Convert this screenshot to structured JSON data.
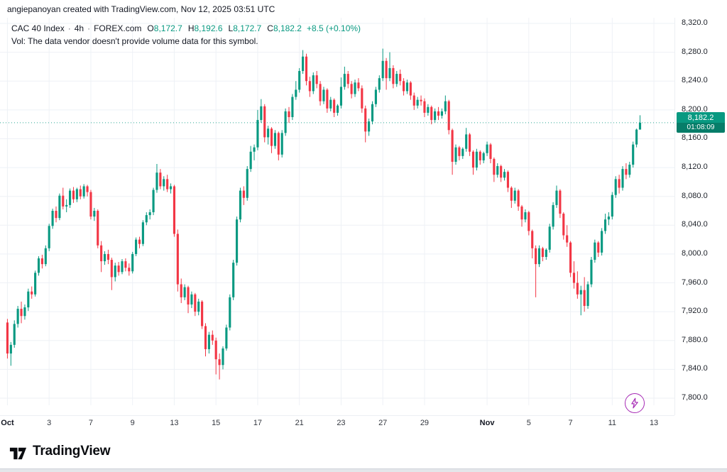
{
  "attribution": "angiepanoyan created with TradingView.com, Nov 12, 2025 03:51 UTC",
  "legend": {
    "symbol": "CAC 40 Index",
    "interval": "4h",
    "exchange": "FOREX.com",
    "separator": "·",
    "ohlc": {
      "o_label": "O",
      "o": "8,172.7",
      "h_label": "H",
      "h": "8,192.6",
      "l_label": "L",
      "l": "8,172.7",
      "c_label": "C",
      "c": "8,182.2",
      "change": "+8.5 (+0.10%)"
    },
    "vol_note": "Vol: The data vendor doesn't provide volume data for this symbol."
  },
  "price_scale": {
    "last_price_label": {
      "price": "8,182.2",
      "countdown": "01:08:09"
    }
  },
  "logo": {
    "text": "TradingView"
  },
  "colors": {
    "up": "#089981",
    "down": "#f23645",
    "grid": "#eef1f6",
    "axis_text": "#1b1f27",
    "accent_purple": "#a62bb5"
  },
  "chart_data": {
    "type": "candlestick",
    "title": "CAC 40 Index",
    "interval": "4h",
    "exchange": "FOREX.com",
    "ylim": [
      7800,
      8320
    ],
    "total_slots": 192,
    "last_price_value": 8182.2,
    "y_ticks": [
      {
        "label": "8,320.0",
        "value": 8320
      },
      {
        "label": "8,280.0",
        "value": 8280
      },
      {
        "label": "8,240.0",
        "value": 8240
      },
      {
        "label": "8,200.0",
        "value": 8200
      },
      {
        "label": "8,160.0",
        "value": 8160
      },
      {
        "label": "8,120.0",
        "value": 8120
      },
      {
        "label": "8,080.0",
        "value": 8080
      },
      {
        "label": "8,040.0",
        "value": 8040
      },
      {
        "label": "8,000.0",
        "value": 8000
      },
      {
        "label": "7,960.0",
        "value": 7960
      },
      {
        "label": "7,920.0",
        "value": 7920
      },
      {
        "label": "7,880.0",
        "value": 7880
      },
      {
        "label": "7,840.0",
        "value": 7840
      },
      {
        "label": "7,800.0",
        "value": 7800
      }
    ],
    "x_ticks": [
      {
        "text": "Oct",
        "slot": 0,
        "major": true
      },
      {
        "text": "3",
        "slot": 12,
        "major": false
      },
      {
        "text": "7",
        "slot": 24,
        "major": false
      },
      {
        "text": "9",
        "slot": 36,
        "major": false
      },
      {
        "text": "13",
        "slot": 48,
        "major": false
      },
      {
        "text": "15",
        "slot": 60,
        "major": false
      },
      {
        "text": "17",
        "slot": 72,
        "major": false
      },
      {
        "text": "21",
        "slot": 84,
        "major": false
      },
      {
        "text": "23",
        "slot": 96,
        "major": false
      },
      {
        "text": "27",
        "slot": 108,
        "major": false
      },
      {
        "text": "29",
        "slot": 120,
        "major": false
      },
      {
        "text": "Nov",
        "slot": 138,
        "major": true
      },
      {
        "text": "5",
        "slot": 150,
        "major": false
      },
      {
        "text": "7",
        "slot": 162,
        "major": false
      },
      {
        "text": "11",
        "slot": 174,
        "major": false
      },
      {
        "text": "13",
        "slot": 186,
        "major": false
      }
    ],
    "candles": [
      [
        7905,
        7910,
        7855,
        7862
      ],
      [
        7862,
        7878,
        7845,
        7874
      ],
      [
        7874,
        7908,
        7870,
        7903
      ],
      [
        7903,
        7928,
        7898,
        7924
      ],
      [
        7924,
        7934,
        7904,
        7914
      ],
      [
        7914,
        7930,
        7909,
        7926
      ],
      [
        7926,
        7952,
        7921,
        7948
      ],
      [
        7948,
        7955,
        7938,
        7944
      ],
      [
        7944,
        7977,
        7941,
        7974
      ],
      [
        7974,
        7997,
        7970,
        7994
      ],
      [
        7994,
        7999,
        7980,
        7986
      ],
      [
        7986,
        8012,
        7983,
        8008
      ],
      [
        8008,
        8042,
        8004,
        8039
      ],
      [
        8039,
        8063,
        8035,
        8060
      ],
      [
        8060,
        8066,
        8044,
        8050
      ],
      [
        8050,
        8084,
        8047,
        8081
      ],
      [
        8081,
        8092,
        8062,
        8066
      ],
      [
        8066,
        8076,
        8058,
        8068
      ],
      [
        8068,
        8091,
        8064,
        8088
      ],
      [
        8088,
        8093,
        8071,
        8076
      ],
      [
        8076,
        8092,
        8072,
        8090
      ],
      [
        8090,
        8095,
        8076,
        8080
      ],
      [
        8080,
        8097,
        8077,
        8094
      ],
      [
        8094,
        8096,
        8080,
        8086
      ],
      [
        8086,
        8089,
        8048,
        8052
      ],
      [
        8052,
        8064,
        8046,
        8060
      ],
      [
        8060,
        8062,
        8008,
        8012
      ],
      [
        8012,
        8018,
        7975,
        7990
      ],
      [
        7990,
        8004,
        7985,
        8000
      ],
      [
        8000,
        8006,
        7986,
        7992
      ],
      [
        7992,
        7995,
        7950,
        7968
      ],
      [
        7968,
        7988,
        7962,
        7984
      ],
      [
        7984,
        7989,
        7970,
        7975
      ],
      [
        7975,
        7993,
        7972,
        7990
      ],
      [
        7990,
        7994,
        7976,
        7981
      ],
      [
        7981,
        7987,
        7970,
        7976
      ],
      [
        7976,
        8003,
        7973,
        8000
      ],
      [
        8000,
        8023,
        7997,
        8020
      ],
      [
        8020,
        8024,
        8008,
        8014
      ],
      [
        8014,
        8047,
        8011,
        8044
      ],
      [
        8044,
        8058,
        8040,
        8054
      ],
      [
        8054,
        8062,
        8048,
        8058
      ],
      [
        8058,
        8092,
        8054,
        8089
      ],
      [
        8089,
        8125,
        8085,
        8113
      ],
      [
        8113,
        8118,
        8090,
        8094
      ],
      [
        8094,
        8108,
        8088,
        8104
      ],
      [
        8104,
        8110,
        8086,
        8090
      ],
      [
        8090,
        8098,
        8084,
        8094
      ],
      [
        8094,
        8096,
        8024,
        8028
      ],
      [
        8028,
        8034,
        7948,
        7958
      ],
      [
        7958,
        7966,
        7932,
        7940
      ],
      [
        7940,
        7958,
        7936,
        7954
      ],
      [
        7954,
        7956,
        7918,
        7930
      ],
      [
        7930,
        7948,
        7925,
        7944
      ],
      [
        7944,
        7946,
        7914,
        7920
      ],
      [
        7920,
        7938,
        7915,
        7934
      ],
      [
        7934,
        7936,
        7896,
        7900
      ],
      [
        7900,
        7904,
        7858,
        7868
      ],
      [
        7868,
        7892,
        7862,
        7888
      ],
      [
        7888,
        7894,
        7874,
        7880
      ],
      [
        7880,
        7884,
        7833,
        7854
      ],
      [
        7854,
        7862,
        7826,
        7846
      ],
      [
        7846,
        7872,
        7840,
        7869
      ],
      [
        7869,
        7902,
        7866,
        7898
      ],
      [
        7898,
        7944,
        7894,
        7940
      ],
      [
        7940,
        7992,
        7936,
        7988
      ],
      [
        7988,
        8052,
        7984,
        8048
      ],
      [
        8048,
        8092,
        8044,
        8088
      ],
      [
        8088,
        8094,
        8068,
        8078
      ],
      [
        8078,
        8122,
        8074,
        8118
      ],
      [
        8118,
        8150,
        8114,
        8142
      ],
      [
        8142,
        8152,
        8130,
        8148
      ],
      [
        8148,
        8200,
        8144,
        8186
      ],
      [
        8186,
        8215,
        8182,
        8205
      ],
      [
        8205,
        8208,
        8155,
        8162
      ],
      [
        8162,
        8178,
        8152,
        8174
      ],
      [
        8174,
        8176,
        8140,
        8150
      ],
      [
        8150,
        8172,
        8146,
        8168
      ],
      [
        8168,
        8170,
        8130,
        8138
      ],
      [
        8138,
        8172,
        8134,
        8168
      ],
      [
        8168,
        8202,
        8164,
        8198
      ],
      [
        8198,
        8204,
        8182,
        8190
      ],
      [
        8190,
        8222,
        8186,
        8218
      ],
      [
        8218,
        8240,
        8214,
        8228
      ],
      [
        8228,
        8258,
        8224,
        8254
      ],
      [
        8254,
        8283,
        8250,
        8274
      ],
      [
        8274,
        8278,
        8234,
        8240
      ],
      [
        8240,
        8246,
        8218,
        8226
      ],
      [
        8226,
        8252,
        8222,
        8248
      ],
      [
        8248,
        8254,
        8230,
        8236
      ],
      [
        8236,
        8240,
        8206,
        8212
      ],
      [
        8212,
        8232,
        8208,
        8228
      ],
      [
        8228,
        8230,
        8196,
        8202
      ],
      [
        8202,
        8218,
        8198,
        8214
      ],
      [
        8214,
        8216,
        8190,
        8196
      ],
      [
        8196,
        8208,
        8192,
        8206
      ],
      [
        8206,
        8245,
        8202,
        8232
      ],
      [
        8232,
        8260,
        8228,
        8250
      ],
      [
        8250,
        8254,
        8230,
        8236
      ],
      [
        8236,
        8240,
        8216,
        8222
      ],
      [
        8222,
        8242,
        8218,
        8238
      ],
      [
        8238,
        8244,
        8226,
        8230
      ],
      [
        8230,
        8234,
        8196,
        8202
      ],
      [
        8202,
        8206,
        8155,
        8170
      ],
      [
        8170,
        8188,
        8164,
        8184
      ],
      [
        8184,
        8212,
        8180,
        8208
      ],
      [
        8208,
        8232,
        8204,
        8228
      ],
      [
        8228,
        8248,
        8224,
        8244
      ],
      [
        8244,
        8285,
        8240,
        8268
      ],
      [
        8268,
        8272,
        8228,
        8244
      ],
      [
        8244,
        8280,
        8240,
        8258
      ],
      [
        8258,
        8262,
        8230,
        8236
      ],
      [
        8236,
        8254,
        8232,
        8250
      ],
      [
        8250,
        8256,
        8234,
        8240
      ],
      [
        8240,
        8244,
        8220,
        8226
      ],
      [
        8226,
        8242,
        8222,
        8238
      ],
      [
        8238,
        8240,
        8214,
        8220
      ],
      [
        8220,
        8224,
        8200,
        8206
      ],
      [
        8206,
        8218,
        8202,
        8214
      ],
      [
        8214,
        8220,
        8206,
        8212
      ],
      [
        8212,
        8216,
        8190,
        8196
      ],
      [
        8196,
        8208,
        8192,
        8204
      ],
      [
        8204,
        8206,
        8180,
        8186
      ],
      [
        8186,
        8202,
        8182,
        8198
      ],
      [
        8198,
        8204,
        8186,
        8192
      ],
      [
        8192,
        8202,
        8188,
        8198
      ],
      [
        8198,
        8220,
        8194,
        8212
      ],
      [
        8212,
        8214,
        8166,
        8172
      ],
      [
        8172,
        8174,
        8110,
        8128
      ],
      [
        8128,
        8152,
        8124,
        8148
      ],
      [
        8148,
        8150,
        8130,
        8136
      ],
      [
        8136,
        8148,
        8132,
        8146
      ],
      [
        8146,
        8175,
        8142,
        8166
      ],
      [
        8166,
        8168,
        8136,
        8142
      ],
      [
        8142,
        8144,
        8110,
        8120
      ],
      [
        8120,
        8146,
        8116,
        8142
      ],
      [
        8142,
        8144,
        8124,
        8130
      ],
      [
        8130,
        8142,
        8126,
        8140
      ],
      [
        8140,
        8156,
        8136,
        8152
      ],
      [
        8152,
        8154,
        8126,
        8132
      ],
      [
        8132,
        8134,
        8100,
        8110
      ],
      [
        8110,
        8126,
        8106,
        8122
      ],
      [
        8122,
        8124,
        8100,
        8106
      ],
      [
        8106,
        8118,
        8102,
        8114
      ],
      [
        8114,
        8116,
        8086,
        8092
      ],
      [
        8092,
        8094,
        8064,
        8074
      ],
      [
        8074,
        8092,
        8070,
        8088
      ],
      [
        8088,
        8090,
        8060,
        8066
      ],
      [
        8066,
        8068,
        8038,
        8048
      ],
      [
        8048,
        8062,
        8044,
        8058
      ],
      [
        8058,
        8060,
        8026,
        8032
      ],
      [
        8032,
        8034,
        7994,
        8008
      ],
      [
        8008,
        8012,
        7940,
        7986
      ],
      [
        7986,
        8012,
        7982,
        8008
      ],
      [
        8008,
        8010,
        7990,
        7996
      ],
      [
        7996,
        8008,
        7992,
        8006
      ],
      [
        8006,
        8042,
        8002,
        8038
      ],
      [
        8038,
        8072,
        8034,
        8068
      ],
      [
        8068,
        8095,
        8064,
        8088
      ],
      [
        8088,
        8090,
        8050,
        8056
      ],
      [
        8056,
        8058,
        8020,
        8026
      ],
      [
        8026,
        8040,
        8010,
        8016
      ],
      [
        8016,
        8018,
        7968,
        7974
      ],
      [
        7974,
        7990,
        7952,
        7960
      ],
      [
        7960,
        7976,
        7938,
        7944
      ],
      [
        7944,
        7956,
        7915,
        7950
      ],
      [
        7950,
        7968,
        7920,
        7928
      ],
      [
        7928,
        7962,
        7924,
        7958
      ],
      [
        7958,
        7996,
        7954,
        7992
      ],
      [
        7992,
        8020,
        7988,
        8016
      ],
      [
        8016,
        8018,
        7996,
        8002
      ],
      [
        8002,
        8036,
        7998,
        8032
      ],
      [
        8032,
        8056,
        8028,
        8048
      ],
      [
        8048,
        8058,
        8040,
        8052
      ],
      [
        8052,
        8086,
        8048,
        8082
      ],
      [
        8082,
        8108,
        8078,
        8104
      ],
      [
        8104,
        8110,
        8084,
        8092
      ],
      [
        8092,
        8122,
        8088,
        8118
      ],
      [
        8118,
        8126,
        8104,
        8110
      ],
      [
        8110,
        8128,
        8106,
        8124
      ],
      [
        8124,
        8156,
        8120,
        8152
      ],
      [
        8152,
        8174,
        8148,
        8172.7
      ],
      [
        8172.7,
        8192.6,
        8172.7,
        8182.2
      ]
    ]
  }
}
